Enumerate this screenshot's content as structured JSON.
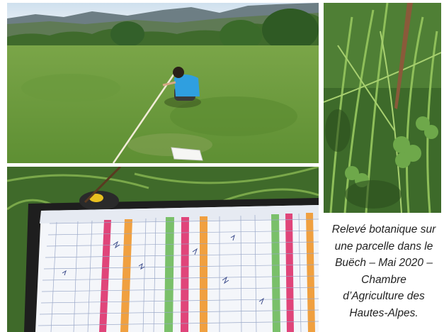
{
  "caption": {
    "text": "Relevé botanique sur\nune parcelle dans le\nBuëch – Mai 2020 –\nChambre\nd’Agriculture des\nHautes-Alpes."
  },
  "photos": [
    {
      "name": "field-survey-photo",
      "subject": "person measuring a meadow plot with a tape"
    },
    {
      "name": "grass-closeup-photo",
      "subject": "close-up of grasses and clover with a stake"
    },
    {
      "name": "survey-sheet-photo",
      "subject": "botanical survey record sheet with coloured columns"
    }
  ],
  "colors": {
    "sheet_pink": "#e0457a",
    "sheet_orange": "#f0a040",
    "sheet_green": "#7ac06a",
    "meadow_green": "#6a9a3a"
  }
}
